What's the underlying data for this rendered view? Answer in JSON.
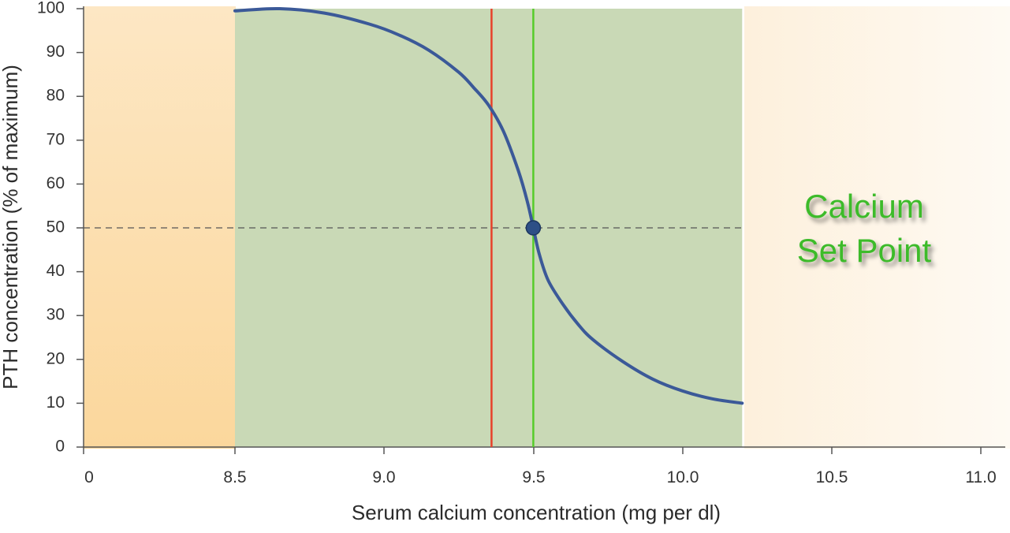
{
  "chart_data": {
    "type": "line",
    "title": "",
    "xlabel": "Serum calcium concentration (mg per dl)",
    "ylabel": "PTH concentration (% of maximum)",
    "x_axis": {
      "scale": "broken (0 then 8.5 to 11.0)",
      "tick_values": [
        0,
        8.5,
        9.0,
        9.5,
        10.0,
        10.5,
        11.0
      ],
      "tick_labels": [
        "0",
        "8.5",
        "9.0",
        "9.5",
        "10.0",
        "10.5",
        "11.0"
      ]
    },
    "y_axis": {
      "range": [
        0,
        100
      ],
      "tick_values": [
        0,
        10,
        20,
        30,
        40,
        50,
        60,
        70,
        80,
        90,
        100
      ],
      "tick_labels": [
        "0",
        "10",
        "20",
        "30",
        "40",
        "50",
        "60",
        "70",
        "80",
        "90",
        "100"
      ]
    },
    "grid": false,
    "legend": "none",
    "series": [
      {
        "x": [
          8.5,
          8.65,
          8.8,
          8.95,
          9.05,
          9.15,
          9.25,
          9.3,
          9.35,
          9.4,
          9.45,
          9.48,
          9.5,
          9.52,
          9.55,
          9.6,
          9.65,
          9.7,
          9.8,
          9.9,
          10.0,
          10.1,
          10.2
        ],
        "y": [
          99.5,
          100,
          99,
          96.5,
          94,
          90.5,
          85.5,
          82,
          78,
          72,
          63,
          56,
          50,
          44,
          38,
          32.5,
          28,
          24.5,
          19.5,
          15.5,
          12.8,
          11,
          10
        ],
        "color": "#3b5998"
      }
    ],
    "set_point": {
      "x": 9.5,
      "y": 50
    },
    "reference_lines": [
      {
        "axis": "x",
        "value": 9.36,
        "color": "#e8412a"
      },
      {
        "axis": "x",
        "value": 9.5,
        "color": "#55cc2a"
      },
      {
        "axis": "y",
        "value": 50,
        "style": "dashed",
        "color": "#555555"
      }
    ],
    "shaded_region": {
      "x_range": [
        8.5,
        10.2
      ],
      "y_range": [
        0,
        100
      ],
      "color": "#c9d9b6"
    },
    "annotation": {
      "lines": [
        "Calcium",
        "Set Point"
      ],
      "color": "#3dbb2c"
    }
  }
}
